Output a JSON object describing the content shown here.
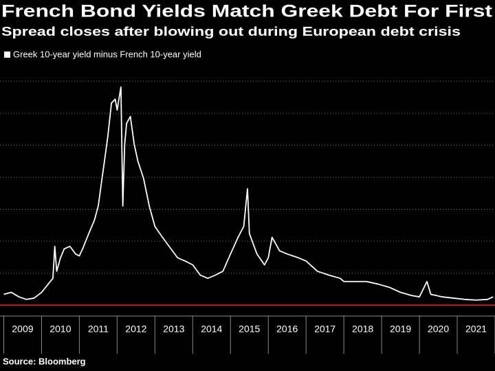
{
  "chart_data": {
    "type": "line",
    "title": "French Bond Yields Match Greek Debt For First",
    "subtitle": "Spread closes after blowing out during European debt crisis",
    "source": "Source: Bloomberg",
    "series": [
      {
        "name": "Greek 10-year yield minus French 10-year yield",
        "color": "#ffffff",
        "x": [
          2009.0,
          2009.2,
          2009.4,
          2009.6,
          2009.8,
          2010.0,
          2010.15,
          2010.3,
          2010.35,
          2010.4,
          2010.5,
          2010.6,
          2010.75,
          2010.9,
          2011.0,
          2011.1,
          2011.25,
          2011.4,
          2011.5,
          2011.6,
          2011.65,
          2011.75,
          2011.85,
          2011.95,
          2012.0,
          2012.1,
          2012.15,
          2012.2,
          2012.25,
          2012.35,
          2012.45,
          2012.55,
          2012.7,
          2012.85,
          2013.0,
          2013.2,
          2013.4,
          2013.6,
          2013.8,
          2014.0,
          2014.2,
          2014.4,
          2014.6,
          2014.8,
          2015.0,
          2015.2,
          2015.35,
          2015.45,
          2015.5,
          2015.7,
          2015.9,
          2016.0,
          2016.1,
          2016.3,
          2016.5,
          2016.8,
          2017.0,
          2017.3,
          2017.6,
          2017.9,
          2018.0,
          2018.3,
          2018.6,
          2018.9,
          2019.2,
          2019.5,
          2019.8,
          2020.0,
          2020.2,
          2020.3,
          2020.6,
          2020.9,
          2021.2,
          2021.5,
          2021.8,
          2021.95
        ],
        "values": [
          1.7,
          2.0,
          1.3,
          0.9,
          1.1,
          2.0,
          3.1,
          4.2,
          9.2,
          5.3,
          7.4,
          8.8,
          9.2,
          8.0,
          7.7,
          9.0,
          11.2,
          13.3,
          15.5,
          19.8,
          21.9,
          26.2,
          31.6,
          32.2,
          30.5,
          34.1,
          15.5,
          25.2,
          28.4,
          29.5,
          25.2,
          22.5,
          19.8,
          15.5,
          12.3,
          10.6,
          9.0,
          7.4,
          6.9,
          6.3,
          4.7,
          4.2,
          4.7,
          5.3,
          8.0,
          10.6,
          12.3,
          18.2,
          11.2,
          8.0,
          6.3,
          7.4,
          10.6,
          8.5,
          8.0,
          7.4,
          6.9,
          5.3,
          4.7,
          4.2,
          3.7,
          3.7,
          3.7,
          3.3,
          2.8,
          2.0,
          1.5,
          1.3,
          3.7,
          1.7,
          1.3,
          1.1,
          0.9,
          0.8,
          0.9,
          1.3
        ]
      }
    ],
    "xlim": [
      2008.9,
      2022.0
    ],
    "xticks": [
      {
        "value": 2009.5,
        "label": "2009"
      },
      {
        "value": 2010.5,
        "label": "2010"
      },
      {
        "value": 2011.5,
        "label": "2011"
      },
      {
        "value": 2012.5,
        "label": "2012"
      },
      {
        "value": 2013.5,
        "label": "2013"
      },
      {
        "value": 2014.5,
        "label": "2014"
      },
      {
        "value": 2015.5,
        "label": "2015"
      },
      {
        "value": 2016.5,
        "label": "2016"
      },
      {
        "value": 2017.5,
        "label": "2017"
      },
      {
        "value": 2018.5,
        "label": "2018"
      },
      {
        "value": 2019.5,
        "label": "2019"
      },
      {
        "value": 2020.5,
        "label": "2020"
      },
      {
        "value": 2021.5,
        "label": "2021"
      }
    ],
    "ylim": [
      -1.7,
      37.5
    ],
    "yticks": [
      0,
      5,
      10,
      15,
      20,
      25,
      30,
      35
    ],
    "zero_line_color": "#e0232b",
    "grid": true
  }
}
